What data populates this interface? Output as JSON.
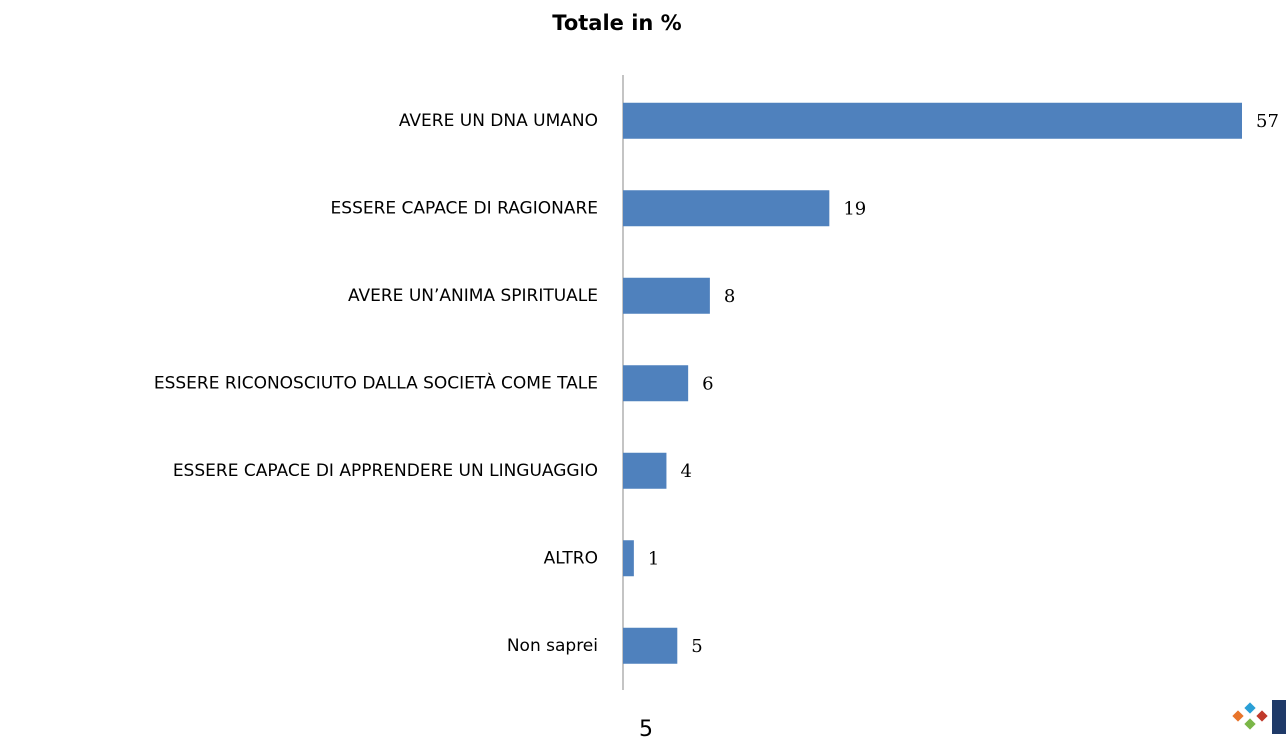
{
  "chart_data": {
    "type": "bar",
    "orientation": "horizontal",
    "title": "Totale in %",
    "categories": [
      "AVERE UN DNA UMANO",
      "ESSERE CAPACE DI RAGIONARE",
      "AVERE UN’ANIMA SPIRITUALE",
      "ESSERE RICONOSCIUTO DALLA SOCIETÀ COME TALE",
      "ESSERE CAPACE DI APPRENDERE UN LINGUAGGIO",
      "ALTRO",
      "Non saprei"
    ],
    "values": [
      57,
      19,
      8,
      6,
      4,
      1,
      5
    ],
    "color": "#4f81bd"
  },
  "page_number": "5"
}
